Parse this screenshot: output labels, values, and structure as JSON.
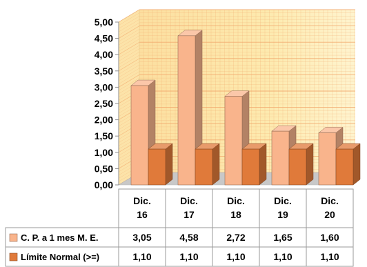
{
  "chart_data": {
    "type": "bar",
    "categories": [
      [
        "Dic.",
        "16"
      ],
      [
        "Dic.",
        "17"
      ],
      [
        "Dic.",
        "18"
      ],
      [
        "Dic.",
        "19"
      ],
      [
        "Dic.",
        "20"
      ]
    ],
    "ylim": [
      0,
      5
    ],
    "y_ticks": [
      "0,00",
      "0,50",
      "1,00",
      "1,50",
      "2,00",
      "2,50",
      "3,00",
      "3,50",
      "4,00",
      "4,50",
      "5,00"
    ],
    "grid": true,
    "legend": "table-left",
    "data_table": true,
    "series": [
      {
        "name": "C. P. a 1 mes M. E.",
        "values": [
          3.05,
          4.58,
          2.72,
          1.65,
          1.6
        ],
        "labels": [
          "3,05",
          "4,58",
          "2,72",
          "1,65",
          "1,60"
        ],
        "color": "#F9B48C"
      },
      {
        "name": "Límite Normal (>=)",
        "values": [
          1.1,
          1.1,
          1.1,
          1.1,
          1.1
        ],
        "labels": [
          "1,10",
          "1,10",
          "1,10",
          "1,10",
          "1,10"
        ],
        "color": "#E07A3A"
      }
    ],
    "colors": {
      "wall": "#FCE9A6",
      "wall_grid": "#F2A66A",
      "floor": "#C8C8C8",
      "table_border": "#9A9A9A"
    }
  }
}
